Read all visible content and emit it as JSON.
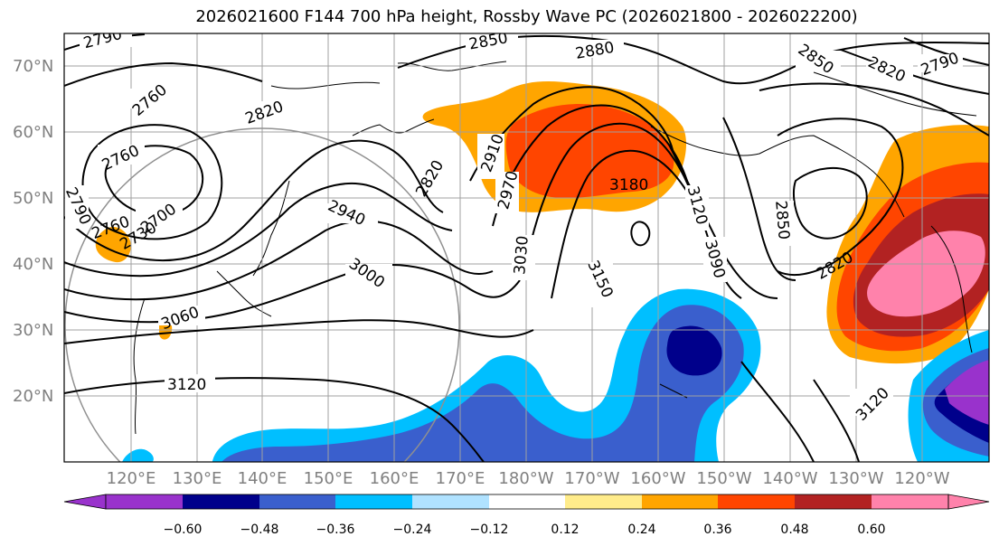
{
  "title": "2026021600 F144 700 hPa height, Rossby Wave PC (2026021800 - 2026022200)",
  "lat_labels": [
    "70°N",
    "60°N",
    "50°N",
    "40°N",
    "30°N",
    "20°N"
  ],
  "lon_labels": [
    "120°E",
    "130°E",
    "140°E",
    "150°E",
    "160°E",
    "170°E",
    "180°W",
    "170°W",
    "160°W",
    "150°W",
    "140°W",
    "130°W",
    "120°W"
  ],
  "contour_labels": [
    "2790",
    "2850",
    "2880",
    "2850",
    "2820",
    "2790",
    "2760",
    "2820",
    "2910",
    "2970",
    "3180",
    "3120",
    "3090",
    "2850",
    "2820",
    "2760",
    "2790",
    "2700",
    "2730",
    "2940",
    "3000",
    "3030",
    "3150",
    "3060",
    "3120",
    "3120",
    "2820",
    "2760"
  ],
  "colorbar": {
    "ticks": [
      "−0.60",
      "−0.48",
      "−0.36",
      "−0.24",
      "−0.12",
      "0.12",
      "0.24",
      "0.36",
      "0.48",
      "0.60"
    ],
    "colors": [
      "#9932cc",
      "#00008b",
      "#3a5fcd",
      "#00bfff",
      "#b0e2ff",
      "#ffffff",
      "#ffec8b",
      "#ffa500",
      "#ff4500",
      "#b22222",
      "#ff82ab"
    ]
  },
  "fill_colors": {
    "deep_purple": "#9932cc",
    "navy": "#00008b",
    "royal_blue": "#3a5fcd",
    "sky_blue": "#00bfff",
    "orange": "#ffa500",
    "red_orange": "#ff4500",
    "firebrick": "#b22222",
    "pink": "#ff82ab"
  }
}
